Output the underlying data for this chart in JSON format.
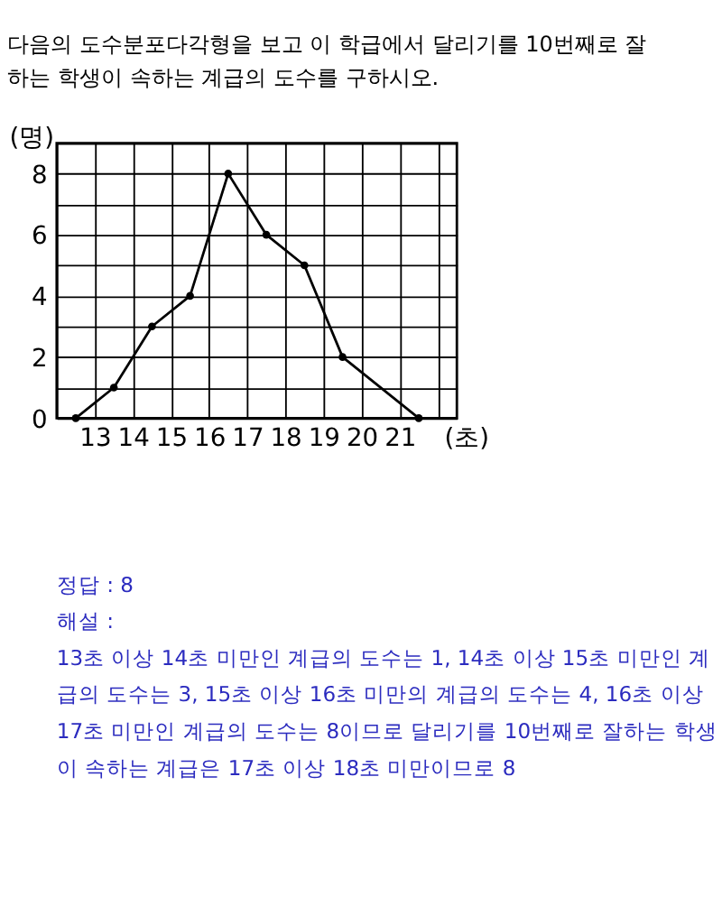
{
  "chart_data": {
    "type": "line",
    "title": "다음의 도수분포다각형을 보고 이 학급에서 달리기를 10번째로 잘하는 학생이 속하는 계급의 도수를 구하시오.",
    "xlabel": "(초)",
    "ylabel": "(명)",
    "x": [
      12.5,
      13.5,
      14.5,
      15.5,
      16.5,
      17.5,
      18.5,
      19.5,
      21.5
    ],
    "series": [
      {
        "color": "#000000",
        "values": [
          0,
          1,
          3,
          4,
          8,
          6,
          5,
          2,
          0
        ]
      }
    ],
    "xlim": [
      12,
      22.5
    ],
    "ylim": [
      0,
      9
    ],
    "xticks": [
      {
        "value": 12,
        "label": null
      },
      13,
      14,
      15,
      16,
      17,
      18,
      19,
      20,
      21,
      {
        "value": 22,
        "label": null
      }
    ],
    "yticks": [
      0,
      {
        "value": 1,
        "label": null
      },
      2,
      {
        "value": 3,
        "label": null
      },
      4,
      {
        "value": 5,
        "label": null
      },
      6,
      {
        "value": 7,
        "label": null
      },
      8,
      {
        "value": 9,
        "label": null
      }
    ],
    "grid": true,
    "marker": "circle",
    "line_style": "solid",
    "annotations": [
      "정답 : 8",
      "해설 :",
      "13초 이상 14초 미만인 계급의 도수는 1, 14초 이상 15초 미만인 계급의 도수는 3, 15초 이상 16초 미만의 계급의 도수는 4, 16초 이상 17초 미만인 계급의 도수는 8이므로 달리기를 10번째로 잘하는 학생이 속하는 계급은 17초 이상 18초 미만이므로 8"
    ]
  }
}
